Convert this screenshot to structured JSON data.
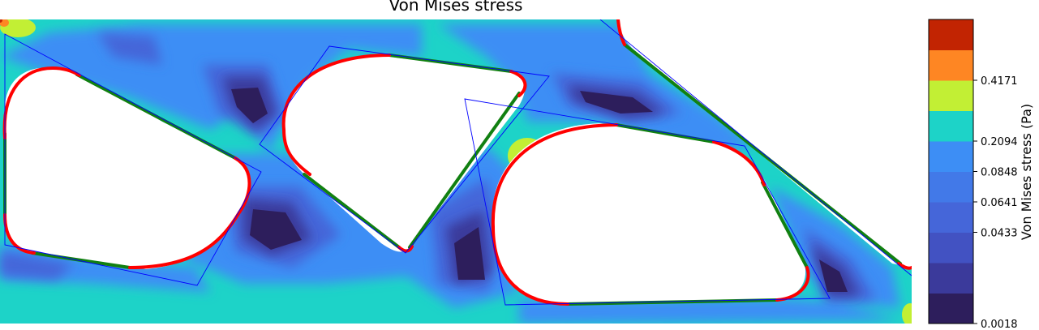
{
  "chart_data": {
    "type": "heatmap",
    "title": "Von Mises stress",
    "colorbar": {
      "label": "Von Mises stress (Pa)",
      "ticks": [
        "0.0018",
        "0.0433",
        "0.0641",
        "0.0848",
        "0.2094",
        "0.4171"
      ],
      "levels": [
        "#2d1e5c",
        "#3b3a9b",
        "#4252c2",
        "#4566d9",
        "#4279e8",
        "#3d8ef5",
        "#1dd3c8",
        "#c2ef34",
        "#fe8623",
        "#c22402"
      ]
    },
    "palette": {
      "field": "#1dd3c8",
      "hole_red": "#ff0000",
      "edge_green": "#118011",
      "mesh_blue": "#0000ff"
    }
  }
}
